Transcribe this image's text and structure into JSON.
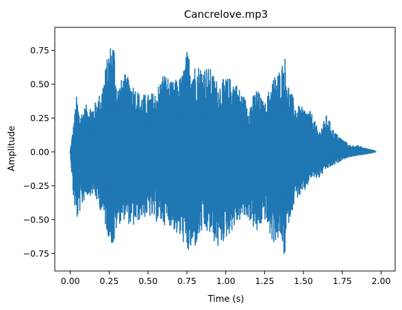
{
  "chart_data": {
    "type": "line",
    "title": "Cancrelove.mp3",
    "xlabel": "Time (s)",
    "ylabel": "Amplitude",
    "xlim": [
      -0.1,
      2.09
    ],
    "ylim": [
      -0.88,
      0.92
    ],
    "x_ticks": [
      0.0,
      0.25,
      0.5,
      0.75,
      1.0,
      1.25,
      1.5,
      1.75,
      2.0
    ],
    "x_tick_labels": [
      "0.00",
      "0.25",
      "0.50",
      "0.75",
      "1.00",
      "1.25",
      "1.50",
      "1.75",
      "2.00"
    ],
    "y_ticks": [
      -0.75,
      -0.5,
      -0.25,
      0.0,
      0.25,
      0.5,
      0.75
    ],
    "y_tick_labels": [
      "−0.75",
      "−0.50",
      "−0.25",
      "0.00",
      "0.25",
      "0.50",
      "0.75"
    ],
    "grid": false,
    "legend": "none",
    "series": [
      {
        "color": "#1f77b4",
        "envelope": {
          "t": [
            0.0,
            0.02,
            0.04,
            0.06,
            0.1,
            0.15,
            0.2,
            0.25,
            0.28,
            0.3,
            0.35,
            0.4,
            0.45,
            0.5,
            0.55,
            0.6,
            0.65,
            0.7,
            0.72,
            0.75,
            0.8,
            0.85,
            0.9,
            0.95,
            1.0,
            1.05,
            1.1,
            1.15,
            1.2,
            1.25,
            1.3,
            1.35,
            1.38,
            1.4,
            1.45,
            1.5,
            1.55,
            1.6,
            1.65,
            1.7,
            1.75,
            1.8,
            1.85,
            1.9,
            1.95,
            1.97
          ],
          "max": [
            0.02,
            0.2,
            0.42,
            0.28,
            0.35,
            0.35,
            0.46,
            0.78,
            0.84,
            0.48,
            0.58,
            0.52,
            0.43,
            0.43,
            0.45,
            0.6,
            0.52,
            0.55,
            0.58,
            0.75,
            0.65,
            0.65,
            0.62,
            0.52,
            0.55,
            0.55,
            0.45,
            0.35,
            0.48,
            0.35,
            0.55,
            0.62,
            0.72,
            0.52,
            0.35,
            0.33,
            0.3,
            0.15,
            0.28,
            0.15,
            0.1,
            0.05,
            0.05,
            0.03,
            0.02,
            0.0
          ],
          "min": [
            -0.02,
            -0.35,
            -0.52,
            -0.45,
            -0.33,
            -0.32,
            -0.45,
            -0.65,
            -0.72,
            -0.55,
            -0.5,
            -0.57,
            -0.5,
            -0.48,
            -0.52,
            -0.54,
            -0.55,
            -0.65,
            -0.65,
            -0.77,
            -0.72,
            -0.6,
            -0.62,
            -0.72,
            -0.65,
            -0.57,
            -0.5,
            -0.5,
            -0.62,
            -0.5,
            -0.68,
            -0.65,
            -0.8,
            -0.55,
            -0.35,
            -0.32,
            -0.2,
            -0.2,
            -0.13,
            -0.1,
            -0.06,
            -0.04,
            -0.03,
            -0.02,
            -0.01,
            0.0
          ]
        }
      }
    ]
  }
}
